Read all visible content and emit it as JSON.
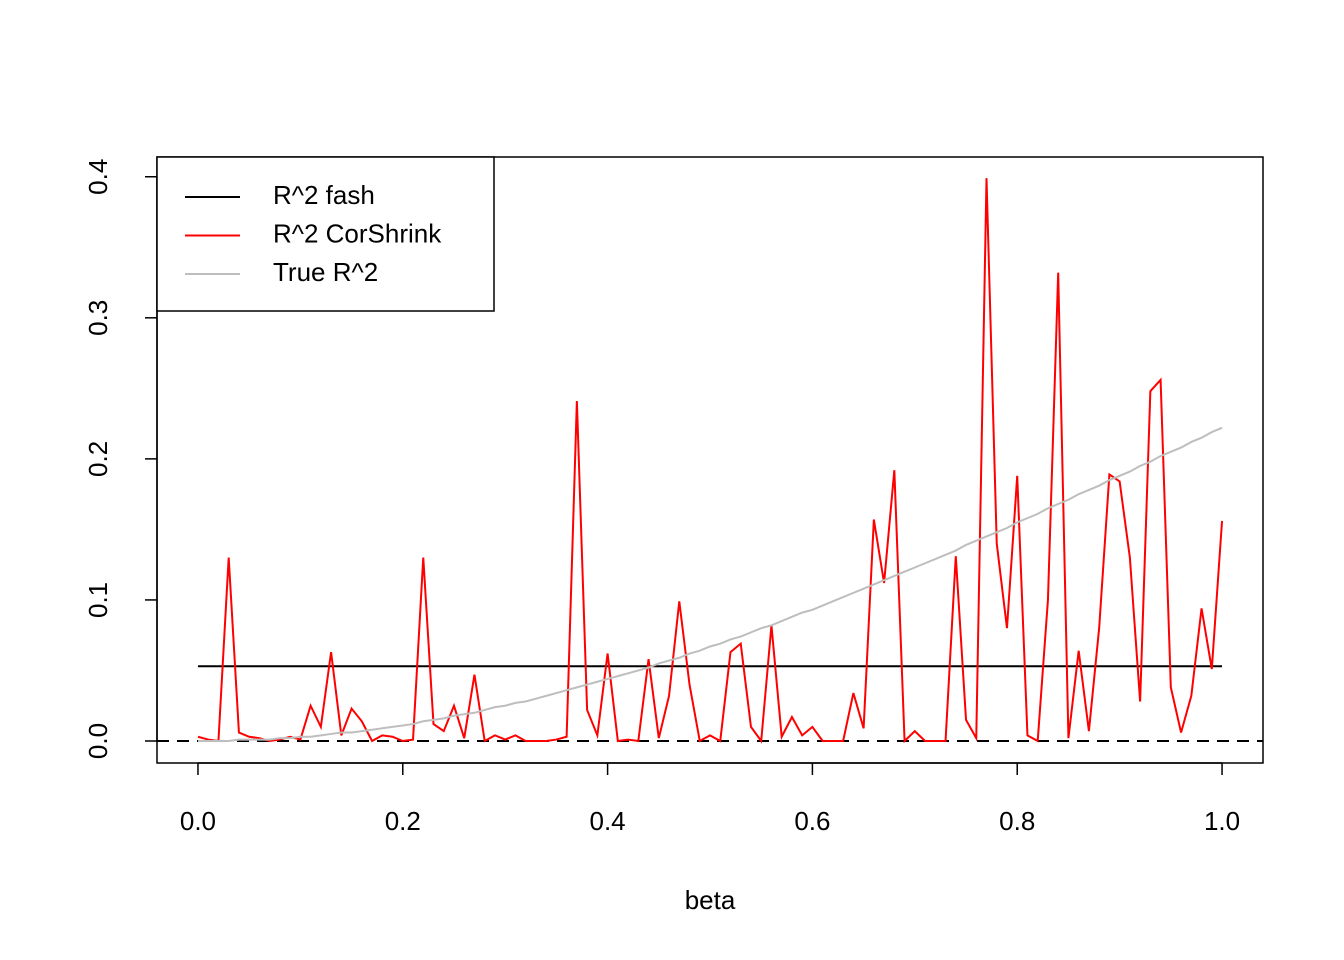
{
  "chart_data": {
    "type": "line",
    "xlabel": "beta",
    "x": [
      0,
      0.01,
      0.02,
      0.03,
      0.04,
      0.05,
      0.06,
      0.07,
      0.08,
      0.09,
      0.1,
      0.11,
      0.12,
      0.13,
      0.14,
      0.15,
      0.16,
      0.17,
      0.18,
      0.19,
      0.2,
      0.21,
      0.22,
      0.23,
      0.24,
      0.25,
      0.26,
      0.27,
      0.28,
      0.29,
      0.3,
      0.31,
      0.32,
      0.33,
      0.34,
      0.35,
      0.36,
      0.37,
      0.38,
      0.39,
      0.4,
      0.41,
      0.42,
      0.43,
      0.44,
      0.45,
      0.46,
      0.47,
      0.48,
      0.49,
      0.5,
      0.51,
      0.52,
      0.53,
      0.54,
      0.55,
      0.56,
      0.57,
      0.58,
      0.59,
      0.6,
      0.61,
      0.62,
      0.63,
      0.64,
      0.65,
      0.66,
      0.67,
      0.68,
      0.69,
      0.7,
      0.71,
      0.72,
      0.73,
      0.74,
      0.75,
      0.76,
      0.77,
      0.78,
      0.79,
      0.8,
      0.81,
      0.82,
      0.83,
      0.84,
      0.85,
      0.86,
      0.87,
      0.88,
      0.89,
      0.9,
      0.91,
      0.92,
      0.93,
      0.94,
      0.95,
      0.96,
      0.97,
      0.98,
      0.99,
      1
    ],
    "series": [
      {
        "name": "R^2 fash",
        "color": "#000000",
        "x": [
          0,
          1
        ],
        "values": [
          0.053,
          0.053
        ]
      },
      {
        "name": "R^2 CorShrink",
        "color": "#ff0000",
        "values": [
          0.003,
          0.001,
          0,
          0.13,
          0.006,
          0.003,
          0.002,
          0,
          0.001,
          0.003,
          0.001,
          0.025,
          0.01,
          0.063,
          0.004,
          0.023,
          0.014,
          0,
          0.004,
          0.003,
          0,
          0.001,
          0.13,
          0.012,
          0.007,
          0.025,
          0.002,
          0.047,
          0,
          0.004,
          0.001,
          0.004,
          0,
          0,
          0,
          0.001,
          0.003,
          0.241,
          0.022,
          0.004,
          0.062,
          0,
          0.001,
          0,
          0.058,
          0.002,
          0.032,
          0.099,
          0.04,
          0,
          0.004,
          0,
          0.063,
          0.069,
          0.01,
          0,
          0.082,
          0.003,
          0.017,
          0.004,
          0.01,
          0,
          0,
          0,
          0.034,
          0.009,
          0.157,
          0.112,
          0.192,
          0,
          0.007,
          0,
          0,
          0,
          0.131,
          0.015,
          0.002,
          0.399,
          0.14,
          0.08,
          0.188,
          0.004,
          0,
          0.1,
          0.332,
          0.002,
          0.064,
          0.007,
          0.08,
          0.189,
          0.184,
          0.13,
          0.028,
          0.248,
          0.256,
          0.038,
          0.006,
          0.032,
          0.094,
          0.051,
          0.156
        ]
      },
      {
        "name": "True R^2",
        "color": "#bebebe",
        "values": [
          0,
          0,
          0,
          0,
          0.001,
          0.001,
          0.001,
          0.001,
          0.002,
          0.002,
          0.003,
          0.003,
          0.004,
          0.005,
          0.006,
          0.006,
          0.007,
          0.008,
          0.009,
          0.01,
          0.011,
          0.012,
          0.014,
          0.015,
          0.016,
          0.018,
          0.019,
          0.02,
          0.022,
          0.024,
          0.025,
          0.027,
          0.028,
          0.03,
          0.032,
          0.034,
          0.036,
          0.038,
          0.04,
          0.042,
          0.044,
          0.046,
          0.048,
          0.05,
          0.052,
          0.055,
          0.057,
          0.059,
          0.062,
          0.064,
          0.067,
          0.069,
          0.072,
          0.074,
          0.077,
          0.08,
          0.082,
          0.085,
          0.088,
          0.091,
          0.093,
          0.096,
          0.099,
          0.102,
          0.105,
          0.108,
          0.111,
          0.114,
          0.117,
          0.12,
          0.123,
          0.126,
          0.129,
          0.132,
          0.135,
          0.139,
          0.142,
          0.145,
          0.148,
          0.151,
          0.155,
          0.158,
          0.161,
          0.165,
          0.168,
          0.171,
          0.175,
          0.178,
          0.181,
          0.185,
          0.188,
          0.191,
          0.195,
          0.198,
          0.202,
          0.205,
          0.208,
          0.212,
          0.215,
          0.219,
          0.222
        ]
      }
    ],
    "reference_line": {
      "value": 0,
      "style": "dashed",
      "color": "#000000"
    },
    "xlim": [
      -0.04,
      1.04
    ],
    "ylim": [
      -0.0156,
      0.414
    ],
    "xticks": [
      {
        "value": 0,
        "label": "0.0"
      },
      {
        "value": 0.2,
        "label": "0.2"
      },
      {
        "value": 0.4,
        "label": "0.4"
      },
      {
        "value": 0.6,
        "label": "0.6"
      },
      {
        "value": 0.8,
        "label": "0.8"
      },
      {
        "value": 1,
        "label": "1.0"
      }
    ],
    "yticks": [
      {
        "value": 0,
        "label": "0.0"
      },
      {
        "value": 0.1,
        "label": "0.1"
      },
      {
        "value": 0.2,
        "label": "0.2"
      },
      {
        "value": 0.3,
        "label": "0.3"
      },
      {
        "value": 0.4,
        "label": "0.4"
      }
    ],
    "legend": "top-left"
  }
}
